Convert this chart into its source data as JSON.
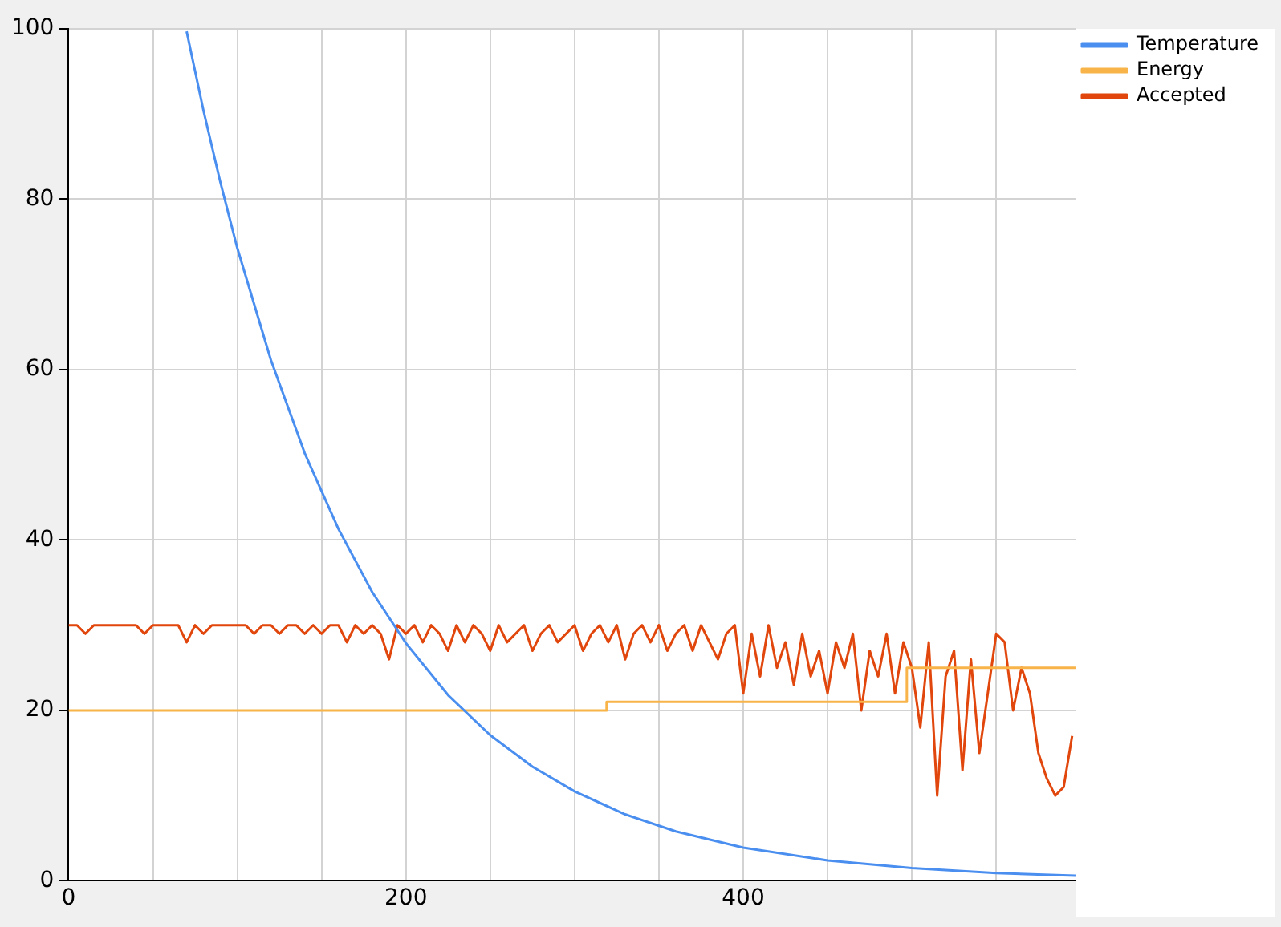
{
  "chart_data": {
    "type": "line",
    "xlim": [
      0,
      597
    ],
    "xticks": [
      0,
      {
        "value": 50,
        "label": null
      },
      {
        "value": 100,
        "label": null
      },
      {
        "value": 150,
        "label": null
      },
      200,
      {
        "value": 250,
        "label": null
      },
      {
        "value": 300,
        "label": null
      },
      {
        "value": 350,
        "label": null
      },
      400,
      {
        "value": 450,
        "label": null
      },
      {
        "value": 500,
        "label": null
      },
      {
        "value": 550,
        "label": null
      }
    ],
    "ylim": [
      0,
      100
    ],
    "yticks": [
      0,
      20,
      40,
      60,
      80,
      100
    ],
    "grid": true,
    "legend": "top right",
    "marker": "none",
    "series": [
      {
        "name": "Temperature",
        "color": "#4a8ff0",
        "x": [
          70,
          80,
          90,
          100,
          120,
          140,
          160,
          180,
          200,
          225,
          250,
          275,
          300,
          330,
          360,
          400,
          450,
          500,
          550,
          597
        ],
        "values": [
          99.7,
          90.4,
          82.0,
          74.3,
          61.1,
          50.2,
          41.3,
          33.9,
          27.9,
          21.8,
          17.1,
          13.4,
          10.5,
          7.8,
          5.8,
          3.9,
          2.4,
          1.5,
          0.9,
          0.6
        ]
      },
      {
        "name": "Energy",
        "color": "#f8b449",
        "x": [
          0,
          319,
          319,
          497,
          497,
          597
        ],
        "values": [
          20,
          20,
          21,
          21,
          25,
          25
        ]
      },
      {
        "name": "Accepted",
        "color": "#e1470c",
        "x": [
          0,
          5,
          10,
          15,
          20,
          25,
          30,
          35,
          40,
          45,
          50,
          55,
          60,
          65,
          70,
          75,
          80,
          85,
          90,
          95,
          100,
          105,
          110,
          115,
          120,
          125,
          130,
          135,
          140,
          145,
          150,
          155,
          160,
          165,
          170,
          175,
          180,
          185,
          190,
          195,
          200,
          205,
          210,
          215,
          220,
          225,
          230,
          235,
          240,
          245,
          250,
          255,
          260,
          265,
          270,
          275,
          280,
          285,
          290,
          295,
          300,
          305,
          310,
          315,
          320,
          325,
          330,
          335,
          340,
          345,
          350,
          355,
          360,
          365,
          370,
          375,
          380,
          385,
          390,
          395,
          400,
          405,
          410,
          415,
          420,
          425,
          430,
          435,
          440,
          445,
          450,
          455,
          460,
          465,
          470,
          475,
          480,
          485,
          490,
          495,
          500,
          505,
          510,
          515,
          520,
          525,
          530,
          535,
          540,
          545,
          550,
          555,
          560,
          565,
          570,
          575,
          580,
          585,
          590,
          595
        ],
        "values": [
          30,
          30,
          29,
          30,
          30,
          30,
          30,
          30,
          30,
          29,
          30,
          30,
          30,
          30,
          28,
          30,
          29,
          30,
          30,
          30,
          30,
          30,
          29,
          30,
          30,
          29,
          30,
          30,
          29,
          30,
          29,
          30,
          30,
          28,
          30,
          29,
          30,
          29,
          26,
          30,
          29,
          30,
          28,
          30,
          29,
          27,
          30,
          28,
          30,
          29,
          27,
          30,
          28,
          29,
          30,
          27,
          29,
          30,
          28,
          29,
          30,
          27,
          29,
          30,
          28,
          30,
          26,
          29,
          30,
          28,
          30,
          27,
          29,
          30,
          27,
          30,
          28,
          26,
          29,
          30,
          22,
          29,
          24,
          30,
          25,
          28,
          23,
          29,
          24,
          27,
          22,
          28,
          25,
          29,
          20,
          27,
          24,
          29,
          22,
          28,
          25,
          18,
          28,
          10,
          24,
          27,
          13,
          26,
          15,
          22,
          29,
          28,
          20,
          25,
          22,
          15,
          12,
          10,
          11,
          17
        ]
      }
    ]
  }
}
